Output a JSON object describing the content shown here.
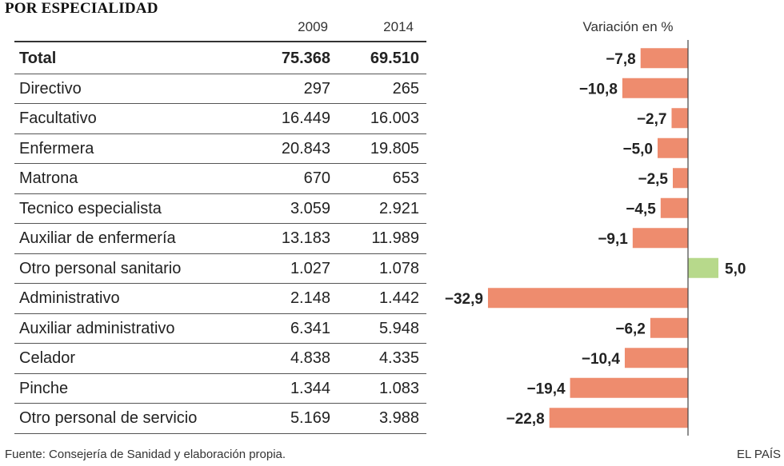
{
  "title": "POR ESPECIALIDAD",
  "headers": {
    "y2009": "2009",
    "y2014": "2014",
    "variation": "Variación en %"
  },
  "rows": [
    {
      "name": "Total",
      "v2009": "75.368",
      "v2014": "69.510",
      "var_label": "−7,8"
    },
    {
      "name": "Directivo",
      "v2009": "297",
      "v2014": "265",
      "var_label": "−10,8"
    },
    {
      "name": "Facultativo",
      "v2009": "16.449",
      "v2014": "16.003",
      "var_label": "−2,7"
    },
    {
      "name": "Enfermera",
      "v2009": "20.843",
      "v2014": "19.805",
      "var_label": "−5,0"
    },
    {
      "name": "Matrona",
      "v2009": "670",
      "v2014": "653",
      "var_label": "−2,5"
    },
    {
      "name": "Tecnico especialista",
      "v2009": "3.059",
      "v2014": "2.921",
      "var_label": "−4,5"
    },
    {
      "name": "Auxiliar de enfermería",
      "v2009": "13.183",
      "v2014": "11.989",
      "var_label": "−9,1"
    },
    {
      "name": "Otro personal sanitario",
      "v2009": "1.027",
      "v2014": "1.078",
      "var_label": "5,0"
    },
    {
      "name": "Administrativo",
      "v2009": "2.148",
      "v2014": "1.442",
      "var_label": "−32,9"
    },
    {
      "name": "Auxiliar administrativo",
      "v2009": "6.341",
      "v2014": "5.948",
      "var_label": "−6,2"
    },
    {
      "name": "Celador",
      "v2009": "4.838",
      "v2014": "4.335",
      "var_label": "−10,4"
    },
    {
      "name": "Pinche",
      "v2009": "1.344",
      "v2014": "1.083",
      "var_label": "−19,4"
    },
    {
      "name": "Otro personal de servicio",
      "v2009": "5.169",
      "v2014": "3.988",
      "var_label": "−22,8"
    }
  ],
  "chart_data": {
    "type": "bar",
    "orientation": "horizontal",
    "title": "Variación en %",
    "categories": [
      "Total",
      "Directivo",
      "Facultativo",
      "Enfermera",
      "Matrona",
      "Tecnico especialista",
      "Auxiliar de enfermería",
      "Otro personal sanitario",
      "Administrativo",
      "Auxiliar administrativo",
      "Celador",
      "Pinche",
      "Otro personal de servicio"
    ],
    "values": [
      -7.8,
      -10.8,
      -2.7,
      -5.0,
      -2.5,
      -4.5,
      -9.1,
      5.0,
      -32.9,
      -6.2,
      -10.4,
      -19.4,
      -22.8
    ],
    "xlim": [
      -32.9,
      5.0
    ],
    "colors": {
      "negative": "#ee8c6e",
      "positive": "#b7d98b",
      "axis": "#444444"
    }
  },
  "footer": {
    "source": "Fuente: Consejería de Sanidad y elaboración propia.",
    "brand": "EL PAÍS"
  }
}
